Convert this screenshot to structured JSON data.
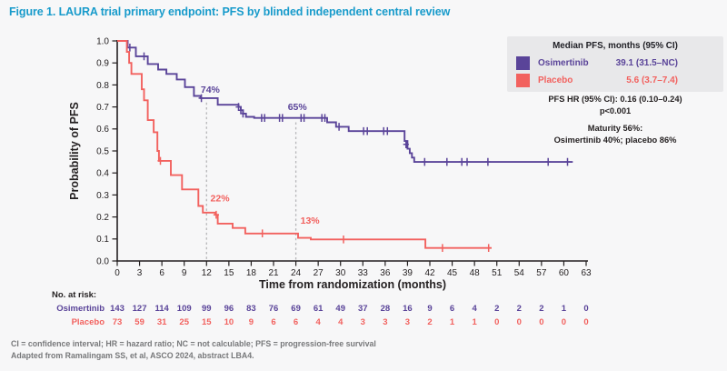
{
  "title": "Figure 1. LAURA trial primary endpoint: PFS by blinded independent central review",
  "legend": {
    "header": "Median PFS, months (95% CI)",
    "rows": [
      {
        "name": "Osimertinib",
        "value": "39.1 (31.5–NC)",
        "color": "#5a4499"
      },
      {
        "name": "Placebo",
        "value": "5.6 (3.7–7.4)",
        "color": "#f2615e"
      }
    ]
  },
  "stats": {
    "line1": "PFS HR (95% CI): 0.16 (0.10–0.24)",
    "line2": "p<0.001",
    "line3": "Maturity 56%:",
    "line4": "Osimertinib 40%; placebo 86%"
  },
  "footnotes": {
    "line1": "CI = confidence interval; HR = hazard ratio; NC = not calculable; PFS = progression-free survival",
    "line2": "Adapted from Ramalingam SS, et al, ASCO 2024, abstract LBA4."
  },
  "chart_data": {
    "type": "line",
    "subtype": "kaplan-meier-step",
    "title": "",
    "xlabel": "Time from randomization (months)",
    "ylabel": "Probability of PFS",
    "xlim": [
      0,
      63
    ],
    "ylim": [
      0.0,
      1.0
    ],
    "xticks": [
      0,
      3,
      6,
      9,
      12,
      15,
      18,
      21,
      24,
      27,
      30,
      33,
      36,
      39,
      42,
      45,
      48,
      51,
      54,
      57,
      60,
      63
    ],
    "yticks": [
      0.0,
      0.1,
      0.2,
      0.3,
      0.4,
      0.5,
      0.6,
      0.7,
      0.8,
      0.9,
      1.0
    ],
    "grid": false,
    "axis_color": "#231f20",
    "series": [
      {
        "name": "Osimertinib",
        "color": "#5a4499",
        "median_months": "39.1 (31.5–NC)",
        "steps": [
          [
            0,
            1.0
          ],
          [
            1.4,
            0.97
          ],
          [
            2.5,
            0.93
          ],
          [
            4.1,
            0.895
          ],
          [
            5.5,
            0.87
          ],
          [
            6.6,
            0.85
          ],
          [
            8.0,
            0.825
          ],
          [
            9.1,
            0.79
          ],
          [
            10.3,
            0.75
          ],
          [
            11.2,
            0.74
          ],
          [
            13.5,
            0.71
          ],
          [
            16.3,
            0.7
          ],
          [
            16.6,
            0.685
          ],
          [
            16.9,
            0.67
          ],
          [
            17.3,
            0.655
          ],
          [
            18.4,
            0.65
          ],
          [
            28.2,
            0.63
          ],
          [
            29.4,
            0.61
          ],
          [
            31.1,
            0.59
          ],
          [
            38.6,
            0.545
          ],
          [
            39.0,
            0.51
          ],
          [
            39.3,
            0.49
          ],
          [
            39.6,
            0.47
          ],
          [
            39.9,
            0.45
          ]
        ],
        "end": 61.2,
        "censors": [
          [
            1.7,
            0.97
          ],
          [
            3.6,
            0.93
          ],
          [
            11.3,
            0.74
          ],
          [
            16.3,
            0.7
          ],
          [
            16.6,
            0.685
          ],
          [
            16.9,
            0.67
          ],
          [
            19.4,
            0.65
          ],
          [
            19.8,
            0.65
          ],
          [
            21.8,
            0.65
          ],
          [
            22.2,
            0.65
          ],
          [
            24.7,
            0.65
          ],
          [
            25.1,
            0.65
          ],
          [
            27.5,
            0.65
          ],
          [
            27.9,
            0.65
          ],
          [
            29.8,
            0.61
          ],
          [
            33.1,
            0.59
          ],
          [
            33.6,
            0.59
          ],
          [
            35.8,
            0.59
          ],
          [
            36.3,
            0.59
          ],
          [
            38.8,
            0.53
          ],
          [
            41.3,
            0.45
          ],
          [
            44.3,
            0.45
          ],
          [
            46.3,
            0.45
          ],
          [
            47.0,
            0.45
          ],
          [
            49.8,
            0.45
          ],
          [
            57.9,
            0.45
          ],
          [
            60.5,
            0.45
          ]
        ]
      },
      {
        "name": "Placebo",
        "color": "#f2615e",
        "median_months": "5.6 (3.7–7.4)",
        "steps": [
          [
            0,
            1.0
          ],
          [
            1.3,
            0.95
          ],
          [
            1.6,
            0.9
          ],
          [
            1.9,
            0.85
          ],
          [
            3.3,
            0.78
          ],
          [
            3.6,
            0.73
          ],
          [
            4.1,
            0.64
          ],
          [
            4.9,
            0.585
          ],
          [
            5.4,
            0.5
          ],
          [
            5.6,
            0.455
          ],
          [
            7.2,
            0.39
          ],
          [
            8.7,
            0.325
          ],
          [
            10.9,
            0.25
          ],
          [
            11.5,
            0.22
          ],
          [
            13.2,
            0.21
          ],
          [
            13.5,
            0.17
          ],
          [
            15.5,
            0.15
          ],
          [
            17.2,
            0.125
          ],
          [
            24.3,
            0.105
          ],
          [
            26.0,
            0.098
          ],
          [
            41.4,
            0.059
          ]
        ],
        "end": 50.3,
        "censors": [
          [
            5.8,
            0.455
          ],
          [
            13.3,
            0.21
          ],
          [
            19.5,
            0.125
          ],
          [
            30.4,
            0.098
          ],
          [
            43.7,
            0.059
          ],
          [
            49.9,
            0.059
          ]
        ]
      }
    ],
    "annotations": [
      {
        "text": "74%",
        "x": 12.5,
        "y": 0.765,
        "color": "#5a4499"
      },
      {
        "text": "65%",
        "x": 24.2,
        "y": 0.685,
        "color": "#5a4499"
      },
      {
        "text": "22%",
        "x": 13.8,
        "y": 0.27,
        "color": "#f2615e"
      },
      {
        "text": "13%",
        "x": 25.9,
        "y": 0.17,
        "color": "#f2615e"
      }
    ],
    "reference_lines": [
      {
        "x": 12,
        "y_top": 0.72
      },
      {
        "x": 24,
        "y_top": 0.63
      }
    ],
    "risk_table": {
      "label": "No. at risk:",
      "timepoints": [
        0,
        3,
        6,
        9,
        12,
        15,
        18,
        21,
        24,
        27,
        30,
        33,
        36,
        39,
        42,
        45,
        48,
        51,
        54,
        57,
        60,
        63
      ],
      "rows": [
        {
          "name": "Osimertinib",
          "color": "#5a4499",
          "values": [
            143,
            127,
            114,
            109,
            99,
            96,
            83,
            76,
            69,
            61,
            49,
            37,
            28,
            16,
            9,
            6,
            4,
            2,
            2,
            2,
            1,
            0
          ]
        },
        {
          "name": "Placebo",
          "color": "#f2615e",
          "values": [
            73,
            59,
            31,
            25,
            15,
            10,
            9,
            6,
            6,
            4,
            4,
            3,
            3,
            3,
            2,
            1,
            1,
            0,
            0,
            0,
            0,
            0
          ]
        }
      ]
    }
  }
}
